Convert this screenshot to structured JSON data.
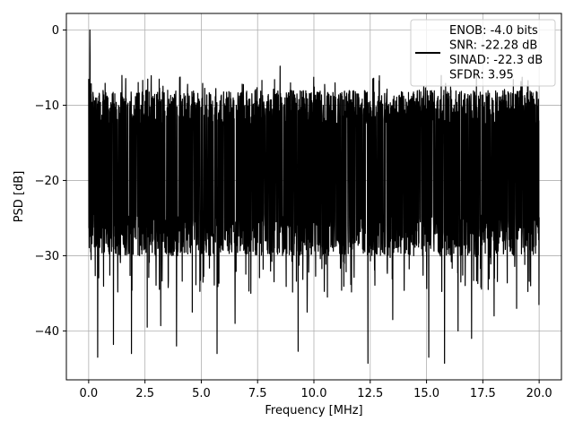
{
  "chart_data": {
    "type": "line",
    "title": "",
    "xlabel": "Frequency [MHz]",
    "ylabel": "PSD [dB]",
    "xlim": [
      -0.99,
      20.99
    ],
    "ylim": [
      -46.5,
      2.2
    ],
    "xticks": [
      0.0,
      2.5,
      5.0,
      7.5,
      10.0,
      12.5,
      15.0,
      17.5,
      20.0
    ],
    "xtick_labels": [
      "0.0",
      "2.5",
      "5.0",
      "7.5",
      "10.0",
      "12.5",
      "15.0",
      "17.5",
      "20.0"
    ],
    "yticks": [
      0,
      -10,
      -20,
      -30,
      -40
    ],
    "ytick_labels": [
      "0",
      "−10",
      "−20",
      "−30",
      "−40"
    ],
    "grid": true,
    "legend_position": "top-right",
    "legend_lines": [
      "ENOB: -4.0 bits",
      "SNR: -22.28 dB",
      "SINAD: -22.3 dB",
      "SFDR: 3.95"
    ],
    "series": [
      {
        "color": "#000000",
        "x_start": 0.0,
        "x_end": 20.0,
        "peak_x": 0.05,
        "peak_y": 0.0,
        "band_top_approx": -11.5,
        "band_bottom_approx": -27.5,
        "highest_outside_peak": -4.8,
        "deep_dips": [
          [
            0.4,
            -43.5
          ],
          [
            1.1,
            -41.8
          ],
          [
            1.9,
            -43.0
          ],
          [
            2.6,
            -39.5
          ],
          [
            3.2,
            -39.3
          ],
          [
            3.9,
            -42.0
          ],
          [
            4.6,
            -37.5
          ],
          [
            5.7,
            -43.0
          ],
          [
            6.5,
            -39.0
          ],
          [
            7.2,
            -35.0
          ],
          [
            9.3,
            -42.7
          ],
          [
            9.7,
            -37.5
          ],
          [
            10.6,
            -35.5
          ],
          [
            12.4,
            -44.3
          ],
          [
            13.5,
            -38.5
          ],
          [
            15.1,
            -43.5
          ],
          [
            15.8,
            -44.3
          ],
          [
            16.4,
            -40.0
          ],
          [
            17.0,
            -41.0
          ],
          [
            18.0,
            -38.0
          ],
          [
            19.0,
            -37.0
          ],
          [
            20.0,
            -36.5
          ]
        ]
      }
    ]
  }
}
